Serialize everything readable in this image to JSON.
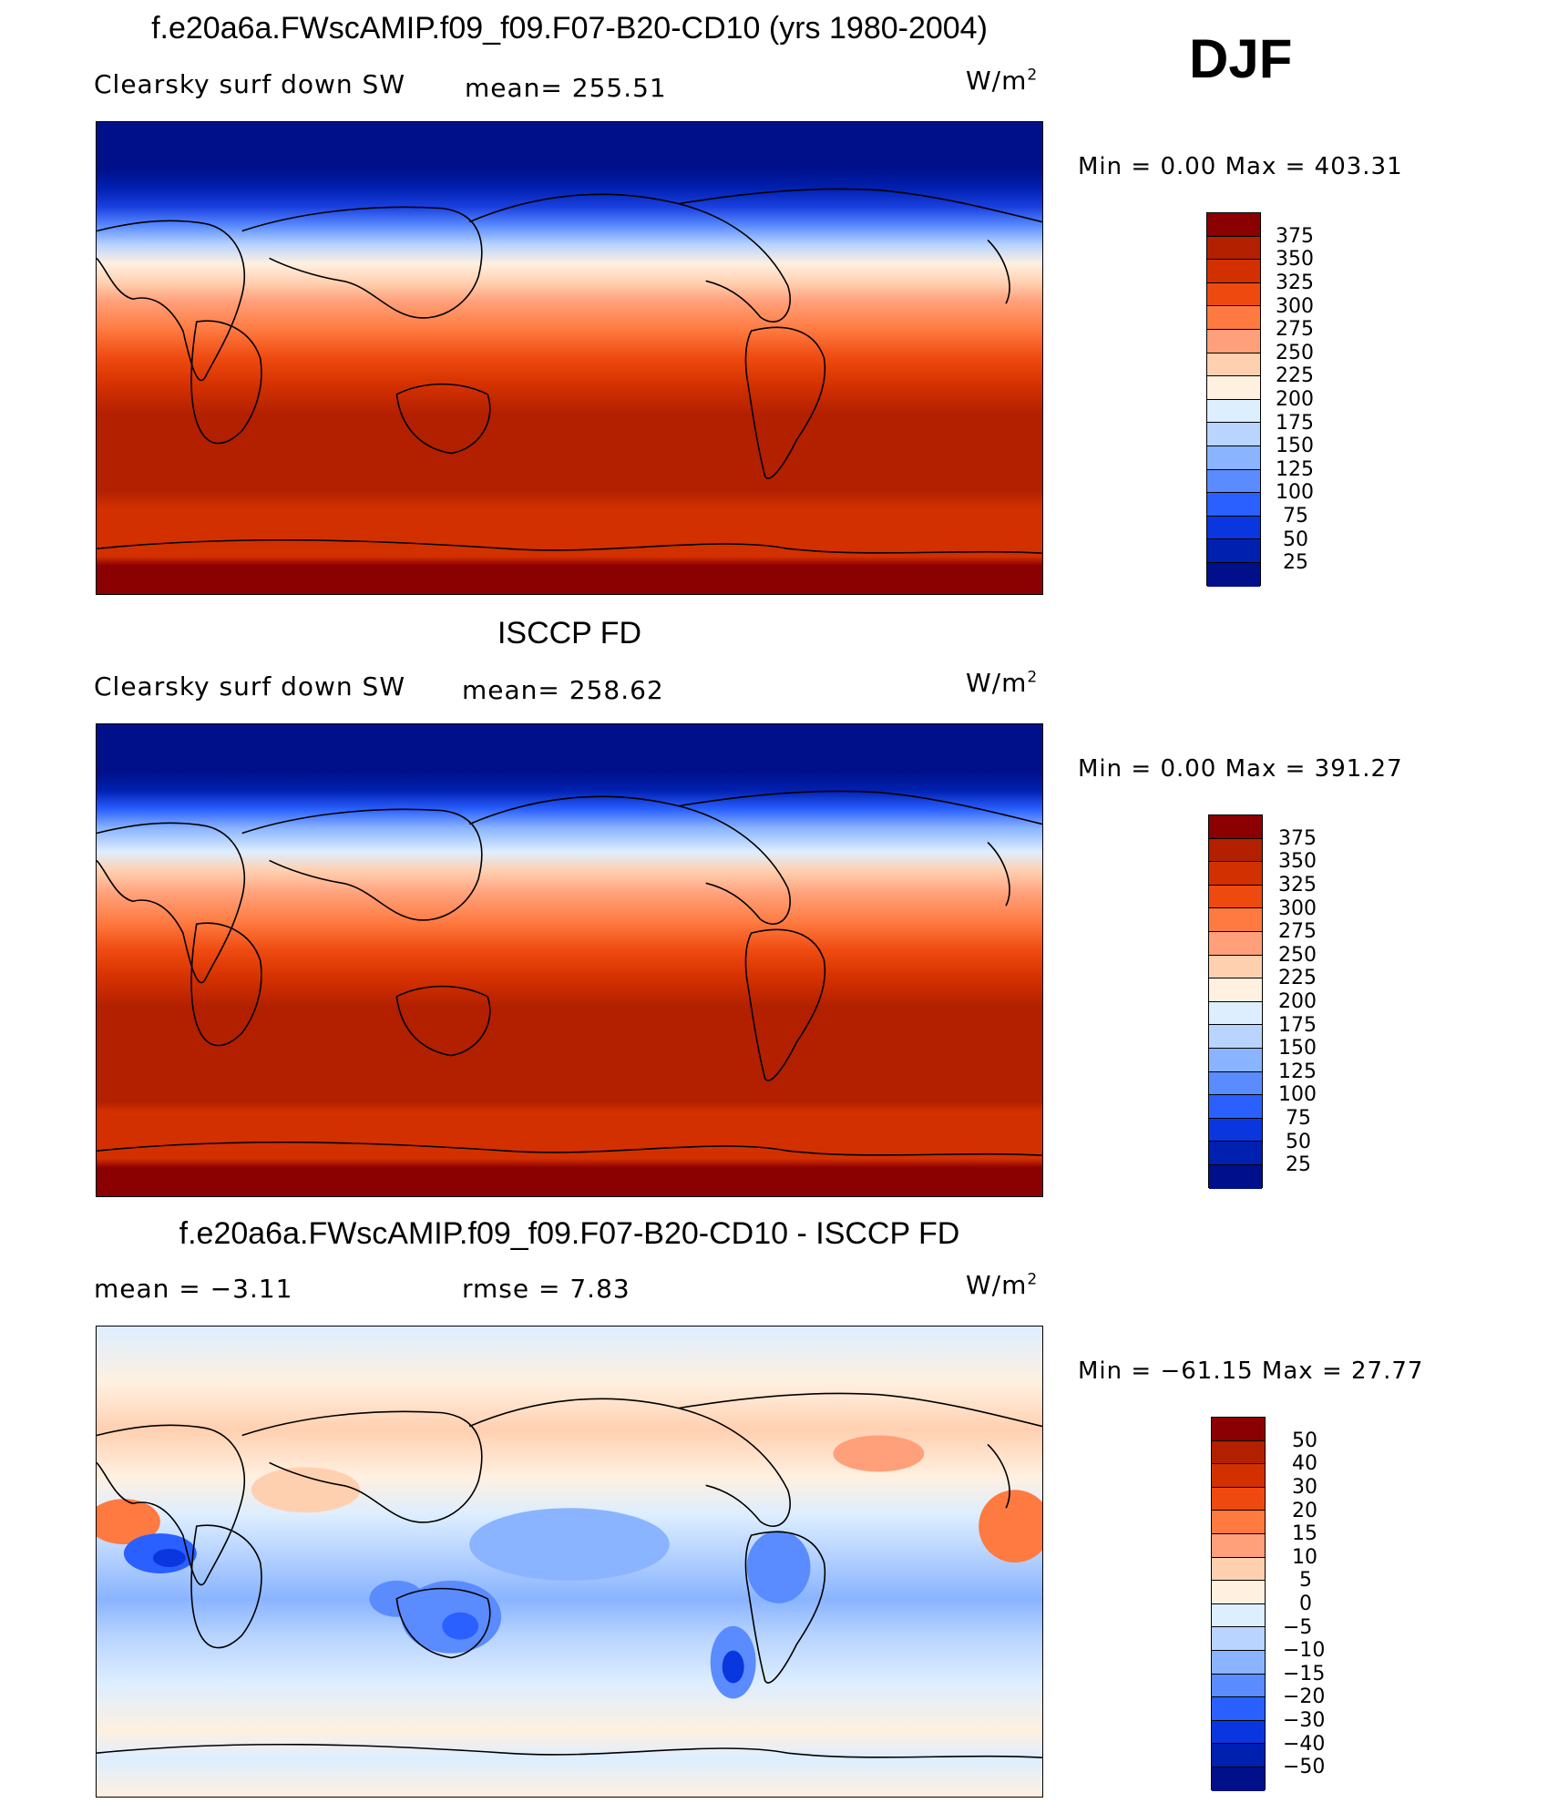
{
  "season": "DJF",
  "panels": [
    {
      "title": "f.e20a6a.FWscAMIP.f09_f09.F07-B20-CD10 (yrs 1980-2004)",
      "left_label": "Clearsky surf down SW",
      "mid_label": "mean= 255.51",
      "units": "W/m",
      "units_sup": "2",
      "min_max": "Min =    0.00 Max = 403.31",
      "ticks": [
        "375",
        "350",
        "325",
        "300",
        "275",
        "250",
        "225",
        "200",
        "175",
        "150",
        "125",
        "100",
        "75",
        "50",
        "25"
      ],
      "colors": [
        "#8b0000",
        "#b22000",
        "#d33000",
        "#ee4a10",
        "#ff7a40",
        "#ffa07a",
        "#ffd0b0",
        "#fff0e0",
        "#ddeeff",
        "#b8d4ff",
        "#8ab4ff",
        "#5a8cff",
        "#2a60ff",
        "#0a36e0",
        "#0020b0",
        "#00108a"
      ]
    },
    {
      "title": "ISCCP FD",
      "left_label": "Clearsky surf down SW",
      "mid_label": "mean= 258.62",
      "units": "W/m",
      "units_sup": "2",
      "min_max": "Min =    0.00 Max = 391.27",
      "ticks": [
        "375",
        "350",
        "325",
        "300",
        "275",
        "250",
        "225",
        "200",
        "175",
        "150",
        "125",
        "100",
        "75",
        "50",
        "25"
      ],
      "colors": [
        "#8b0000",
        "#b22000",
        "#d33000",
        "#ee4a10",
        "#ff7a40",
        "#ffa07a",
        "#ffd0b0",
        "#fff0e0",
        "#ddeeff",
        "#b8d4ff",
        "#8ab4ff",
        "#5a8cff",
        "#2a60ff",
        "#0a36e0",
        "#0020b0",
        "#00108a"
      ]
    },
    {
      "title": "f.e20a6a.FWscAMIP.f09_f09.F07-B20-CD10 - ISCCP FD",
      "left_label": "mean =   −3.11",
      "mid_label": "rmse =    7.83",
      "units": "W/m",
      "units_sup": "2",
      "min_max": "Min = −61.15 Max =  27.77",
      "ticks": [
        "50",
        "40",
        "30",
        "20",
        "15",
        "10",
        "5",
        "0",
        "−5",
        "−10",
        "−15",
        "−20",
        "−30",
        "−40",
        "−50"
      ],
      "colors": [
        "#8b0000",
        "#b22000",
        "#d33000",
        "#ee4a10",
        "#ff7a40",
        "#ffa07a",
        "#ffd0b0",
        "#fff0e0",
        "#ddeeff",
        "#b8d4ff",
        "#8ab4ff",
        "#5a8cff",
        "#2a60ff",
        "#0a36e0",
        "#0020b0",
        "#00108a"
      ]
    }
  ]
}
